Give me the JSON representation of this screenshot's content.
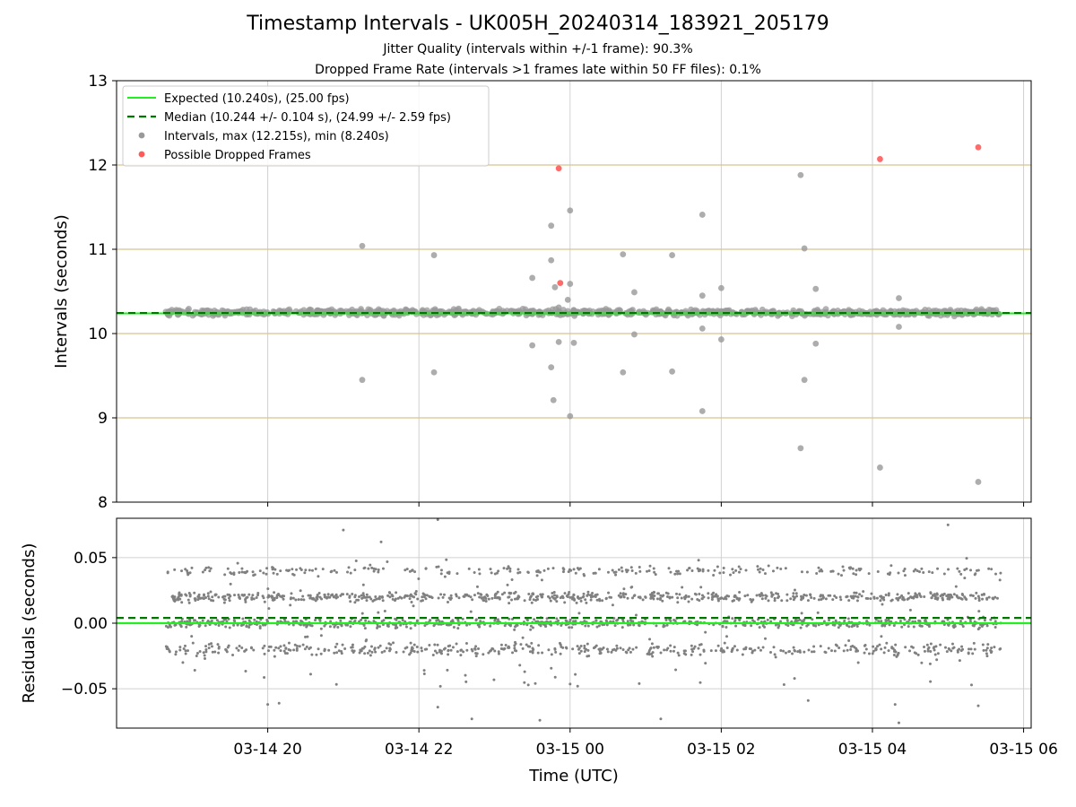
{
  "chart_data": [
    {
      "type": "scatter",
      "title": "Timestamp Intervals - UK005H_20240314_183921_205179",
      "subtitle_lines": [
        "Jitter Quality (intervals within +/-1 frame): 90.3%",
        "Dropped Frame Rate (intervals >1 frames late within 50 FF files): 0.1%"
      ],
      "xlabel": "",
      "ylabel": "Intervals (seconds)",
      "ylim": [
        8,
        13
      ],
      "yticks": [
        8,
        9,
        10,
        11,
        12,
        13
      ],
      "xlim_hours": [
        18.0,
        30.1
      ],
      "x_axis_type": "time",
      "grid": true,
      "frame_lines": [
        9,
        10,
        11,
        12
      ],
      "legend_position": "upper-left",
      "expected": 10.24,
      "median": 10.244,
      "legend": [
        "Expected (10.240s), (25.00 fps)",
        "Median (10.244 +/- 0.104 s), (24.99 +/- 2.59 fps)",
        "Intervals, max (12.215s), min (8.240s)",
        "Possible Dropped Frames"
      ],
      "series": [
        {
          "name": "Intervals, max (12.215s), min (8.240s)",
          "color": "#999999",
          "band": {
            "x_start_hours": 18.65,
            "x_end_hours": 29.7,
            "y_center": 10.25,
            "y_spread": 0.06
          },
          "points": [
            [
              21.25,
              11.04
            ],
            [
              21.25,
              9.45
            ],
            [
              22.2,
              10.93
            ],
            [
              22.2,
              9.54
            ],
            [
              23.5,
              10.66
            ],
            [
              23.5,
              9.86
            ],
            [
              23.75,
              9.6
            ],
            [
              23.75,
              11.28
            ],
            [
              23.75,
              10.87
            ],
            [
              23.78,
              9.21
            ],
            [
              23.8,
              10.55
            ],
            [
              23.85,
              9.9
            ],
            [
              23.85,
              10.31
            ],
            [
              23.97,
              10.4
            ],
            [
              24.0,
              9.02
            ],
            [
              24.0,
              11.46
            ],
            [
              24.0,
              10.59
            ],
            [
              24.05,
              9.89
            ],
            [
              24.7,
              10.94
            ],
            [
              24.7,
              9.54
            ],
            [
              24.85,
              10.49
            ],
            [
              24.85,
              9.99
            ],
            [
              25.35,
              10.93
            ],
            [
              25.35,
              9.55
            ],
            [
              25.75,
              11.41
            ],
            [
              25.75,
              9.08
            ],
            [
              25.75,
              10.45
            ],
            [
              25.75,
              10.06
            ],
            [
              26.0,
              10.54
            ],
            [
              26.0,
              9.93
            ],
            [
              27.05,
              11.88
            ],
            [
              27.05,
              8.64
            ],
            [
              27.1,
              11.01
            ],
            [
              27.1,
              9.45
            ],
            [
              27.25,
              10.53
            ],
            [
              27.25,
              9.88
            ],
            [
              28.1,
              8.41
            ],
            [
              28.35,
              10.42
            ],
            [
              28.35,
              10.08
            ],
            [
              29.4,
              8.24
            ]
          ]
        },
        {
          "name": "Possible Dropped Frames",
          "color": "#ff5a5a",
          "points": [
            [
              23.85,
              11.96
            ],
            [
              23.87,
              10.6
            ],
            [
              28.1,
              12.07
            ],
            [
              29.4,
              12.21
            ]
          ]
        }
      ]
    },
    {
      "type": "scatter",
      "xlabel": "Time (UTC)",
      "ylabel": "Residuals (seconds)",
      "ylim": [
        -0.08,
        0.08
      ],
      "yticks": [
        -0.05,
        0.0,
        0.05
      ],
      "ytick_labels": [
        "−0.05",
        "0.00",
        "0.05"
      ],
      "x_ticks_hours": [
        20,
        22,
        24,
        26,
        28,
        30
      ],
      "x_tick_labels": [
        "03-14 20",
        "03-14 22",
        "03-15 00",
        "03-15 02",
        "03-15 04",
        "03-15 06"
      ],
      "grid": true,
      "expected_residual": 0.0,
      "median_residual": 0.004,
      "series": [
        {
          "color": "#808080",
          "bands": [
            0.02,
            0.0,
            -0.02,
            0.04
          ],
          "x_start_hours": 18.65,
          "x_end_hours": 29.7,
          "outliers": [
            [
              21.0,
              0.071
            ],
            [
              20.0,
              -0.062
            ],
            [
              20.15,
              -0.061
            ],
            [
              22.25,
              0.079
            ],
            [
              22.25,
              -0.064
            ],
            [
              23.6,
              -0.074
            ],
            [
              24.1,
              -0.048
            ],
            [
              25.2,
              -0.073
            ],
            [
              27.15,
              -0.059
            ],
            [
              28.3,
              -0.062
            ],
            [
              28.35,
              -0.076
            ],
            [
              29.4,
              -0.063
            ],
            [
              29.0,
              0.075
            ],
            [
              21.5,
              0.062
            ],
            [
              22.7,
              -0.073
            ]
          ]
        }
      ]
    }
  ]
}
